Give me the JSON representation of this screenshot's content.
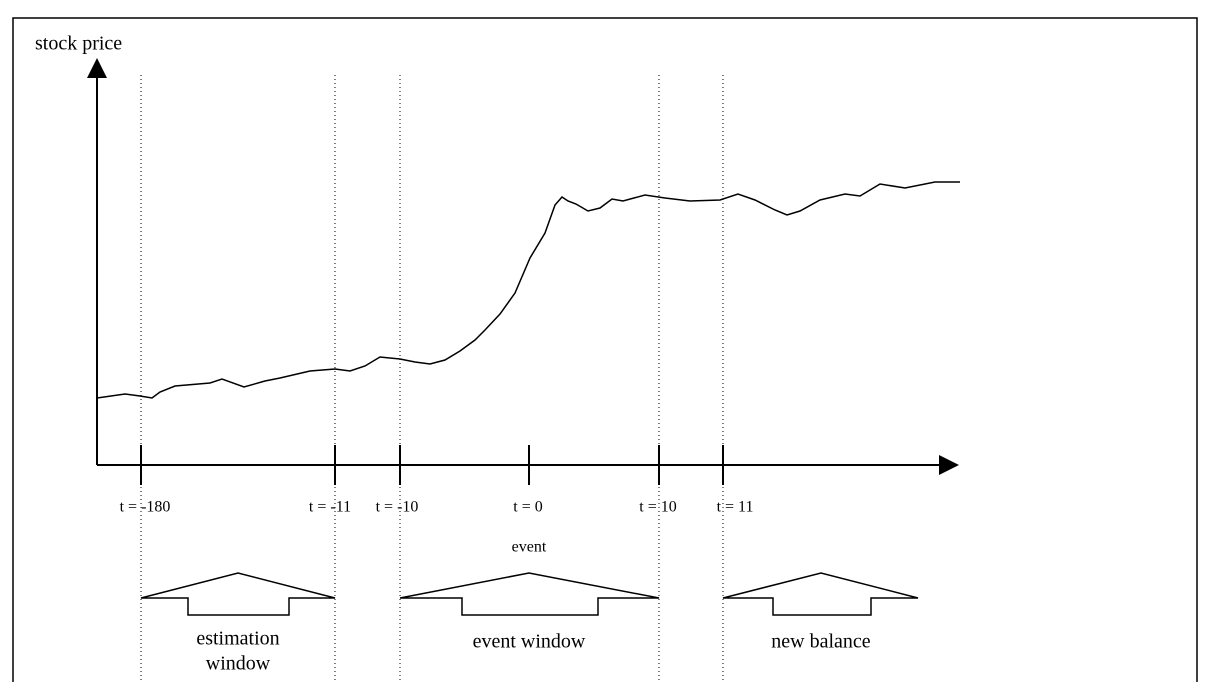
{
  "axis_label": "stock price",
  "ticks": [
    "t = -180",
    "t = -11",
    "t = -10",
    "t = 0",
    "t = 10",
    "t = 11"
  ],
  "event_label": "event",
  "windows": [
    {
      "label": [
        "estimation",
        "window"
      ]
    },
    {
      "label": [
        "event window"
      ]
    },
    {
      "label": [
        "new balance"
      ]
    }
  ]
}
